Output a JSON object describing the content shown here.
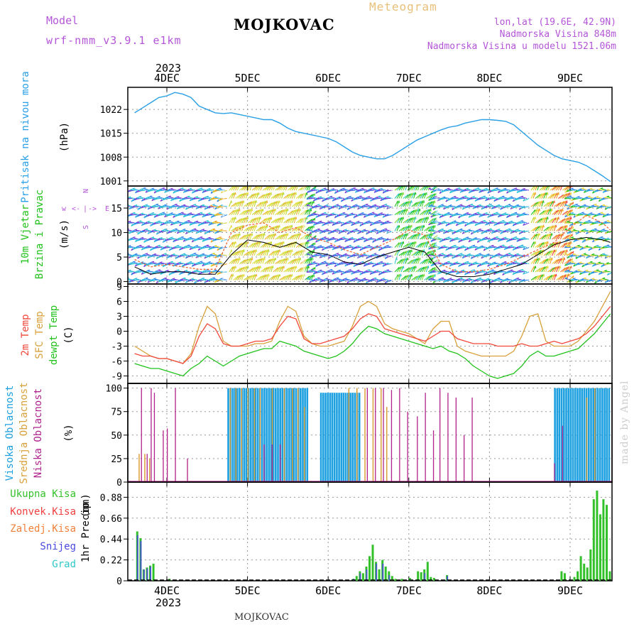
{
  "header": {
    "model_label": "Model",
    "model_name": "wrf-nmm_v3.9.1 e1km",
    "station": "MOJKOVAC",
    "meteogram_label": "Meteogram",
    "lonlat": "lon,lat (19.6E, 42.9N)",
    "altitude": "Nadmorska Visina 848m",
    "model_altitude": "Nadmorska Visina u modelu 1521.06m"
  },
  "footer": {
    "station": "MOJKOVAC",
    "credit": "made by Angel"
  },
  "colors": {
    "pressure": "#2aa0e6",
    "wind_green": "#22c21c",
    "temp2m": "#f0473a",
    "sfc_temp": "#d8a03a",
    "dewpt": "#22c21c",
    "cloud_high": "#1ca0e0",
    "cloud_mid": "#d8a03a",
    "cloud_low": "#b0228c",
    "precip_total": "#33c12a",
    "precip_conv": "#f04040",
    "precip_frozen": "#f0803a",
    "precip_snow": "#4848e0",
    "precip_hail": "#30c8c8",
    "purple": "#b455d8"
  },
  "chart_data": [
    {
      "type": "line",
      "panel": "pressure",
      "ylabel_line1": "Pritisak na nivou mora",
      "ylabel_line2": "(hPa)",
      "ylim": [
        999.5,
        1028.5
      ],
      "yticks": [
        "1001",
        "1008",
        "1015",
        "1022"
      ],
      "xticks": [
        "4DEC",
        "5DEC",
        "6DEC",
        "7DEC",
        "8DEC",
        "9DEC"
      ],
      "xtick_year": "2023",
      "x_days": [
        3.6,
        3.7,
        3.8,
        3.9,
        4.0,
        4.1,
        4.2,
        4.3,
        4.4,
        4.5,
        4.6,
        4.7,
        4.8,
        4.9,
        5.0,
        5.1,
        5.2,
        5.3,
        5.4,
        5.5,
        5.6,
        5.7,
        5.8,
        5.9,
        6.0,
        6.1,
        6.2,
        6.3,
        6.4,
        6.5,
        6.6,
        6.7,
        6.8,
        6.9,
        7.0,
        7.1,
        7.2,
        7.3,
        7.4,
        7.5,
        7.6,
        7.7,
        7.8,
        7.9,
        8.0,
        8.1,
        8.2,
        8.3,
        8.4,
        8.5,
        8.6,
        8.7,
        8.8,
        8.9,
        9.0,
        9.1,
        9.2,
        9.3,
        9.4,
        9.5
      ],
      "values": [
        1021.0,
        1022.5,
        1024.0,
        1025.5,
        1026.0,
        1027.0,
        1026.5,
        1025.5,
        1023.0,
        1022.0,
        1021.0,
        1020.8,
        1021.0,
        1020.5,
        1020.0,
        1019.5,
        1019.0,
        1019.0,
        1018.0,
        1016.5,
        1015.5,
        1015.0,
        1014.5,
        1014.0,
        1013.5,
        1012.5,
        1011.0,
        1009.5,
        1008.5,
        1008.0,
        1007.5,
        1007.5,
        1008.5,
        1010.0,
        1011.5,
        1013.0,
        1014.0,
        1015.0,
        1016.0,
        1016.8,
        1017.2,
        1018.0,
        1018.5,
        1019.0,
        1019.0,
        1018.8,
        1018.5,
        1017.5,
        1015.5,
        1013.5,
        1011.5,
        1010.0,
        1008.5,
        1007.5,
        1007.0,
        1006.5,
        1005.5,
        1004.0,
        1002.5,
        1000.8
      ]
    },
    {
      "type": "line",
      "panel": "wind",
      "ylabel_line1": "10m Vjetar",
      "ylabel_line2": "Brzina i Pravac",
      "ylabel_unit": "(m/s)",
      "compass_labels": [
        "w",
        "<-",
        "|",
        "->",
        "E",
        "N",
        "S"
      ],
      "ylim": [
        -0.5,
        19.5
      ],
      "yticks": [
        "0",
        "5",
        "10",
        "15"
      ],
      "x_days": [
        3.6,
        3.8,
        4.0,
        4.2,
        4.4,
        4.6,
        4.8,
        5.0,
        5.2,
        5.4,
        5.6,
        5.8,
        6.0,
        6.2,
        6.4,
        6.6,
        6.8,
        7.0,
        7.2,
        7.4,
        7.6,
        7.8,
        8.0,
        8.2,
        8.4,
        8.6,
        8.8,
        9.0,
        9.2,
        9.4,
        9.5
      ],
      "series": [
        {
          "name": "gust",
          "values": [
            4.5,
            3.0,
            3.5,
            3.0,
            2.5,
            2.5,
            10.0,
            11.5,
            12.0,
            10.0,
            11.0,
            9.0,
            8.0,
            6.5,
            5.5,
            7.0,
            8.5,
            10.5,
            9.5,
            3.5,
            2.0,
            2.0,
            2.5,
            3.5,
            5.0,
            6.5,
            8.0,
            11.0,
            13.5,
            12.0,
            10.5
          ]
        },
        {
          "name": "speed",
          "values": [
            3.0,
            1.5,
            2.0,
            2.0,
            1.5,
            1.5,
            5.5,
            8.5,
            8.0,
            7.0,
            8.0,
            6.0,
            5.5,
            4.0,
            3.5,
            5.0,
            6.0,
            7.0,
            6.0,
            2.0,
            1.0,
            1.0,
            1.5,
            2.5,
            3.5,
            5.5,
            7.5,
            8.5,
            9.0,
            8.5,
            8.0
          ]
        }
      ]
    },
    {
      "type": "line",
      "panel": "temperature",
      "ylabel_line1": "2m Temp",
      "ylabel_line2": "SFC Temp",
      "ylabel_line3": "dewpt Temp",
      "ylabel_unit": "(C)",
      "ylim": [
        -10.5,
        9.5
      ],
      "yticks": [
        "-9",
        "-6",
        "-3",
        "0",
        "3",
        "6",
        "9"
      ],
      "x_days": [
        3.6,
        3.7,
        3.8,
        3.9,
        4.0,
        4.1,
        4.2,
        4.3,
        4.4,
        4.5,
        4.6,
        4.7,
        4.8,
        4.9,
        5.0,
        5.1,
        5.2,
        5.3,
        5.4,
        5.5,
        5.6,
        5.7,
        5.8,
        5.9,
        6.0,
        6.1,
        6.2,
        6.3,
        6.4,
        6.5,
        6.6,
        6.7,
        6.8,
        6.9,
        7.0,
        7.1,
        7.2,
        7.3,
        7.4,
        7.5,
        7.6,
        7.7,
        7.8,
        7.9,
        8.0,
        8.1,
        8.2,
        8.3,
        8.4,
        8.5,
        8.6,
        8.7,
        8.8,
        8.9,
        9.0,
        9.1,
        9.2,
        9.3,
        9.4,
        9.5
      ],
      "series": [
        {
          "name": "2m Temp",
          "values": [
            -4.5,
            -5.0,
            -5.0,
            -5.5,
            -5.5,
            -6.0,
            -6.5,
            -5.0,
            -1.0,
            1.5,
            0.5,
            -2.5,
            -3.0,
            -3.0,
            -2.5,
            -2.0,
            -2.0,
            -1.5,
            1.0,
            3.0,
            2.5,
            -1.5,
            -2.5,
            -2.5,
            -2.0,
            -1.5,
            -1.0,
            0.5,
            2.5,
            3.5,
            3.0,
            0.5,
            0.0,
            -0.5,
            -1.0,
            -1.5,
            -2.0,
            -1.0,
            0.0,
            0.0,
            -1.5,
            -2.0,
            -2.5,
            -2.5,
            -2.5,
            -3.0,
            -3.0,
            -3.0,
            -2.5,
            -3.0,
            -3.0,
            -2.5,
            -2.0,
            -2.5,
            -2.0,
            -1.5,
            -0.5,
            1.0,
            3.0,
            5.0
          ]
        },
        {
          "name": "SFC Temp",
          "values": [
            -3.0,
            -4.0,
            -5.0,
            -5.5,
            -5.5,
            -6.0,
            -6.5,
            -4.5,
            1.0,
            5.0,
            3.5,
            -2.0,
            -3.0,
            -3.0,
            -3.0,
            -2.5,
            -2.5,
            -2.0,
            2.0,
            5.0,
            4.0,
            -1.0,
            -2.5,
            -3.0,
            -3.0,
            -2.5,
            -2.0,
            1.0,
            5.0,
            6.0,
            5.0,
            1.5,
            0.5,
            0.0,
            -0.5,
            -1.5,
            -2.5,
            0.5,
            2.0,
            2.0,
            -3.0,
            -4.0,
            -4.5,
            -5.0,
            -5.0,
            -5.0,
            -5.0,
            -4.0,
            -1.0,
            3.0,
            3.5,
            -2.0,
            -3.0,
            -3.0,
            -3.0,
            -2.0,
            0.0,
            2.0,
            5.0,
            8.0
          ]
        },
        {
          "name": "dewpt Temp",
          "values": [
            -6.5,
            -7.0,
            -7.5,
            -7.5,
            -8.0,
            -8.5,
            -9.0,
            -7.5,
            -6.5,
            -5.0,
            -6.0,
            -7.0,
            -6.0,
            -5.0,
            -4.5,
            -4.0,
            -3.5,
            -3.5,
            -2.0,
            -2.5,
            -3.0,
            -4.0,
            -4.5,
            -5.0,
            -5.5,
            -5.0,
            -4.0,
            -2.5,
            -0.5,
            1.0,
            0.5,
            -0.5,
            -1.0,
            -1.5,
            -2.0,
            -2.5,
            -3.0,
            -3.5,
            -3.0,
            -4.0,
            -4.5,
            -5.5,
            -7.0,
            -8.0,
            -9.0,
            -9.5,
            -9.0,
            -8.5,
            -7.0,
            -5.0,
            -4.0,
            -5.0,
            -5.0,
            -4.5,
            -4.0,
            -3.5,
            -2.0,
            -0.5,
            1.5,
            3.5
          ]
        }
      ]
    },
    {
      "type": "bar",
      "panel": "clouds",
      "ylabel_line1": "Visoka Oblacnost",
      "ylabel_line2": "Srednja Oblacnost",
      "ylabel_line3": "Niska Oblacnost",
      "ylabel_unit": "(%)",
      "ylim": [
        0,
        105
      ],
      "yticks": [
        "0",
        "25",
        "50",
        "75",
        "100"
      ],
      "series": [
        {
          "name": "Visoka Oblacnost",
          "segments": [
            {
              "start": 4.75,
              "end": 5.75,
              "value": 100
            },
            {
              "start": 5.9,
              "end": 6.4,
              "value": 95
            },
            {
              "start": 8.8,
              "end": 9.5,
              "value": 100
            }
          ]
        },
        {
          "name": "Srednja Oblacnost",
          "x": [
            3.65,
            3.72,
            3.78,
            4.78,
            4.85,
            4.92,
            5.0,
            5.08,
            5.15,
            5.3,
            5.45,
            5.55,
            5.62,
            5.7,
            6.25,
            6.35,
            6.45,
            6.55,
            6.65,
            6.72,
            9.2,
            9.3
          ],
          "values": [
            30,
            30,
            25,
            100,
            100,
            100,
            100,
            100,
            100,
            100,
            100,
            100,
            100,
            80,
            100,
            100,
            100,
            100,
            100,
            80,
            90,
            100
          ]
        },
        {
          "name": "Niska Oblacnost",
          "x": [
            3.68,
            3.75,
            3.8,
            3.84,
            3.95,
            4.0,
            4.1,
            4.25,
            5.2,
            5.3,
            5.4,
            6.48,
            6.58,
            6.68,
            6.78,
            6.88,
            6.98,
            7.1,
            7.2,
            7.3,
            7.38,
            7.48,
            7.58,
            7.68,
            7.78,
            8.8,
            8.9
          ],
          "values": [
            100,
            30,
            100,
            95,
            55,
            57,
            100,
            25,
            40,
            40,
            40,
            100,
            100,
            100,
            98,
            100,
            75,
            70,
            95,
            55,
            100,
            95,
            90,
            50,
            90,
            20,
            60
          ]
        }
      ]
    },
    {
      "type": "bar",
      "panel": "precipitation",
      "ylabel_line1": "1hr Precip",
      "ylabel_unit": "(mm)",
      "legend": [
        "Ukupna Kisa",
        "Konvek.Kisa",
        "Zaledj.Kisa",
        "Snijeg",
        "Grad"
      ],
      "ylim": [
        0,
        1.04
      ],
      "yticks": [
        "0",
        "0.22",
        "0.44",
        "0.66",
        "0.88"
      ],
      "series": [
        {
          "name": "Ukupna Kisa",
          "x": [
            3.62,
            3.66,
            3.7,
            3.74,
            3.78,
            3.82,
            4.02,
            6.3,
            6.34,
            6.38,
            6.42,
            6.46,
            6.5,
            6.54,
            6.58,
            6.62,
            6.66,
            6.7,
            6.74,
            6.78,
            6.82,
            6.9,
            7.0,
            7.1,
            7.14,
            7.18,
            7.22,
            7.26,
            7.3,
            7.46,
            8.88,
            8.92,
            9.04,
            9.08,
            9.12,
            9.16,
            9.2,
            9.24,
            9.28,
            9.32,
            9.36,
            9.4,
            9.44,
            9.48
          ],
          "values": [
            0.52,
            0.45,
            0.12,
            0.14,
            0.16,
            0.18,
            0.02,
            0.02,
            0.05,
            0.1,
            0.08,
            0.15,
            0.26,
            0.38,
            0.2,
            0.12,
            0.22,
            0.15,
            0.1,
            0.05,
            0.02,
            0.02,
            0.03,
            0.1,
            0.09,
            0.12,
            0.2,
            0.04,
            0.03,
            0.06,
            0.1,
            0.08,
            0.04,
            0.1,
            0.26,
            0.18,
            0.14,
            0.33,
            0.86,
            0.95,
            0.7,
            0.86,
            0.8,
            0.1
          ]
        },
        {
          "name": "Snijeg",
          "x": [
            3.62,
            3.66,
            3.7,
            3.74,
            3.78,
            6.3,
            6.38,
            6.46,
            6.58,
            6.66,
            6.74,
            7.18,
            7.46
          ],
          "values": [
            0.48,
            0.42,
            0.12,
            0.13,
            0.15,
            0.02,
            0.08,
            0.12,
            0.18,
            0.18,
            0.06,
            0.08,
            0.05
          ]
        }
      ]
    }
  ]
}
